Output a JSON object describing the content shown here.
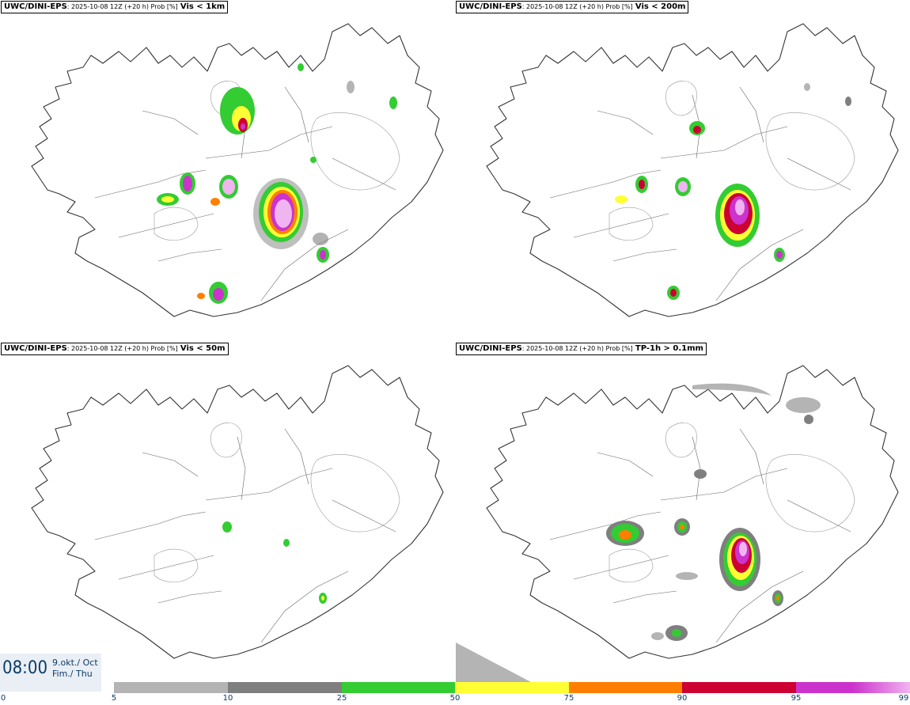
{
  "panels": [
    {
      "model": "UWC/DINI-EPS",
      "meta": ": 2025-10-08 12Z (+20 h) Prob [%]",
      "variable": "Vis < 1km"
    },
    {
      "model": "UWC/DINI-EPS",
      "meta": ": 2025-10-08 12Z (+20 h) Prob [%]",
      "variable": "Vis < 200m"
    },
    {
      "model": "UWC/DINI-EPS",
      "meta": ": 2025-10-08 12Z (+20 h) Prob [%]",
      "variable": "Vis < 50m"
    },
    {
      "model": "UWC/DINI-EPS",
      "meta": ": 2025-10-08 12Z (+20 h) Prob [%]",
      "variable": "TP-1h > 0.1mm"
    }
  ],
  "valid_time": {
    "time": "08:00",
    "date_line1": "9.okt./ Oct",
    "date_line2": "Fim./ Thu"
  },
  "legend": {
    "ticks": [
      "0",
      "5",
      "10",
      "25",
      "50",
      "75",
      "90",
      "95",
      "99"
    ],
    "colors": [
      "#b4b4b4",
      "#7f7f7f",
      "#33cc33",
      "#ffff33",
      "#ff7f00",
      "#cc0033",
      "#cc33cc",
      "#f0b4f0"
    ]
  }
}
